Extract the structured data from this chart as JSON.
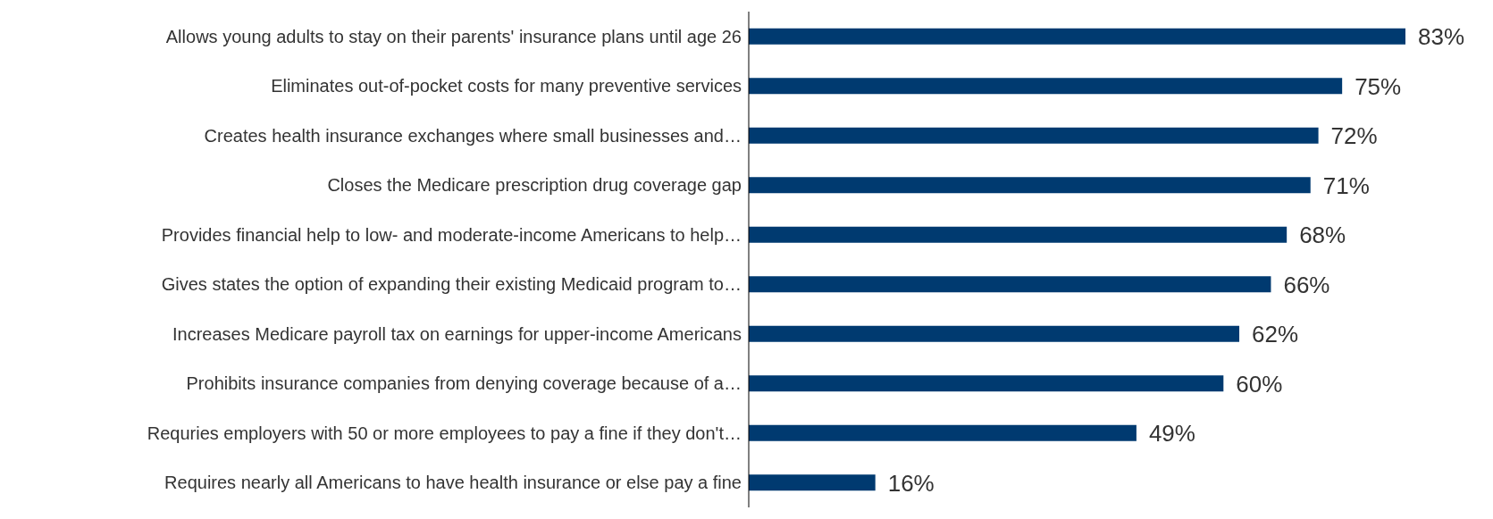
{
  "chart_data": {
    "type": "bar",
    "orientation": "horizontal",
    "categories": [
      "Allows young adults to stay on their parents' insurance plans until age 26",
      "Eliminates out-of-pocket costs for many preventive services",
      "Creates health insurance exchanges where small businesses and…",
      "Closes the Medicare prescription drug coverage gap",
      "Provides financial help to low- and moderate-income Americans to help…",
      "Gives states the option of expanding their existing Medicaid program to…",
      "Increases Medicare payroll tax on earnings for upper-income Americans",
      "Prohibits insurance companies from denying coverage because of a…",
      "Requries employers with 50 or more employees to pay a fine if they don't…",
      "Requires nearly all Americans to have health insurance or else pay a fine"
    ],
    "values": [
      83,
      75,
      72,
      71,
      68,
      66,
      62,
      60,
      49,
      16
    ],
    "value_labels": [
      "83%",
      "75%",
      "72%",
      "71%",
      "68%",
      "66%",
      "62%",
      "60%",
      "49%",
      "16%"
    ],
    "color": "#003a70",
    "grid": false,
    "legend": false
  }
}
